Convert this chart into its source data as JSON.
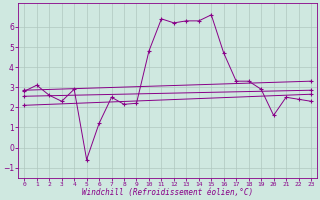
{
  "title": "",
  "xlabel": "Windchill (Refroidissement éolien,°C)",
  "ylabel": "",
  "background_color": "#cfe8e0",
  "line_color": "#880088",
  "grid_color": "#b0c8c0",
  "xlim": [
    -0.5,
    23.5
  ],
  "ylim": [
    -1.5,
    7.2
  ],
  "xticks": [
    0,
    1,
    2,
    3,
    4,
    5,
    6,
    7,
    8,
    9,
    10,
    11,
    12,
    13,
    14,
    15,
    16,
    17,
    18,
    19,
    20,
    21,
    22,
    23
  ],
  "yticks": [
    -1,
    0,
    1,
    2,
    3,
    4,
    5,
    6
  ],
  "series": {
    "line1": {
      "x": [
        0,
        1,
        2,
        3,
        4,
        5,
        6,
        7,
        8,
        9,
        10,
        11,
        12,
        13,
        14,
        15,
        16,
        17,
        18,
        19,
        20,
        21,
        22,
        23
      ],
      "y": [
        2.8,
        3.1,
        2.6,
        2.3,
        2.9,
        -0.6,
        1.2,
        2.5,
        2.15,
        2.2,
        4.8,
        6.4,
        6.2,
        6.3,
        6.3,
        6.6,
        4.7,
        3.3,
        3.3,
        2.9,
        1.6,
        2.5,
        2.4,
        2.3
      ]
    },
    "line2": {
      "x": [
        0,
        23
      ],
      "y": [
        2.85,
        3.3
      ]
    },
    "line3": {
      "x": [
        0,
        23
      ],
      "y": [
        2.55,
        2.85
      ]
    },
    "line4": {
      "x": [
        0,
        23
      ],
      "y": [
        2.1,
        2.65
      ]
    }
  }
}
